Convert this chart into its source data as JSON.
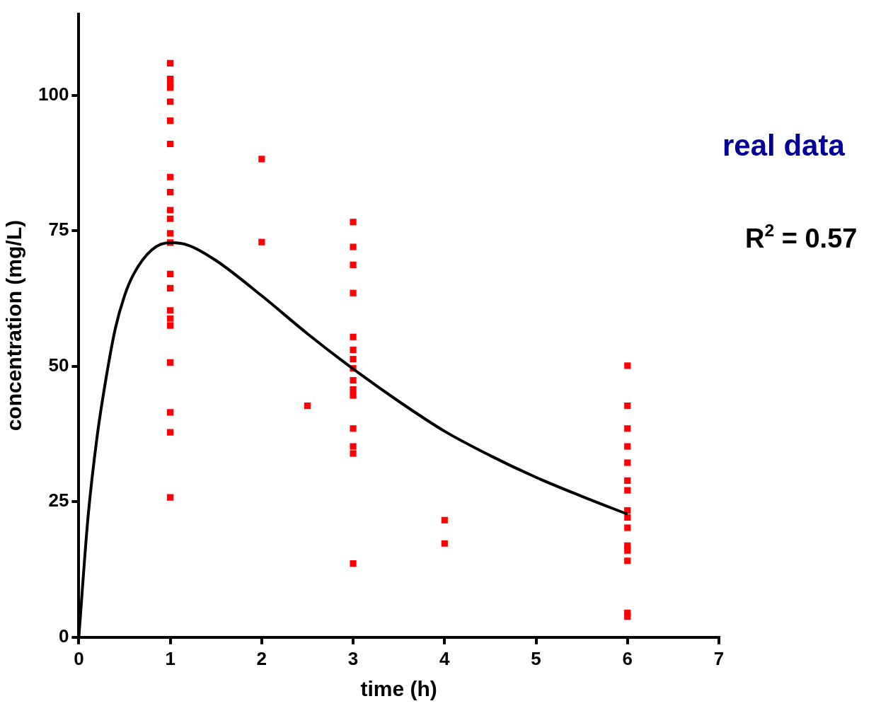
{
  "chart_data": {
    "type": "scatter",
    "xlabel": "time (h)",
    "ylabel": "concentration (mg/L)",
    "xlim": [
      0,
      7
    ],
    "xticks": [
      0,
      1,
      2,
      3,
      4,
      5,
      6,
      7
    ],
    "ylim": [
      0,
      115
    ],
    "yticks": [
      0,
      25,
      50,
      75,
      100
    ],
    "grid": false,
    "legend": false,
    "annotations": [
      "real data",
      "R$^{2}$ = 0.57"
    ],
    "series": [
      {
        "color": "#ff0000",
        "marker": "square",
        "x": [
          1,
          1,
          1,
          1,
          1,
          1,
          1,
          1,
          1,
          1,
          1,
          1,
          1,
          1,
          1,
          1,
          1,
          1,
          1,
          1,
          1,
          1,
          2,
          2,
          2.5,
          3,
          3,
          3,
          3,
          3,
          3,
          3,
          3,
          3,
          3,
          3,
          3,
          3,
          3,
          3,
          4,
          4,
          6,
          6,
          6,
          6,
          6,
          6,
          6,
          6,
          6,
          6,
          6,
          6,
          6,
          6,
          6
        ],
        "values": [
          105.9,
          103.0,
          102.2,
          101.4,
          98.8,
          95.3,
          91.0,
          84.9,
          82.1,
          78.8,
          77.2,
          74.5,
          72.8,
          67.0,
          64.4,
          60.3,
          58.8,
          57.5,
          50.7,
          41.5,
          37.8,
          25.8,
          88.2,
          72.9,
          42.7,
          76.6,
          72.0,
          68.7,
          63.5,
          55.4,
          53.0,
          51.3,
          49.6,
          47.4,
          45.7,
          44.6,
          38.5,
          35.2,
          33.9,
          13.6,
          21.6,
          17.3,
          50.1,
          42.7,
          38.5,
          35.2,
          32.2,
          28.9,
          27.1,
          23.4,
          22.1,
          20.2,
          16.9,
          16.0,
          14.1,
          4.5,
          3.8
        ]
      },
      {
        "type": "line",
        "color": "#000000",
        "marker": "none",
        "line_style": "solid",
        "x": [
          0,
          0.1,
          0.2,
          0.3,
          0.4,
          0.5,
          0.6,
          0.8,
          1,
          1.2,
          1.5,
          2,
          2.5,
          3,
          3.5,
          4,
          4.5,
          5,
          5.5,
          6
        ],
        "values": [
          0,
          22,
          37,
          48,
          57,
          63,
          67,
          71.5,
          72.8,
          72.3,
          69.5,
          63,
          56,
          49.5,
          43.5,
          38,
          33.5,
          29.5,
          26,
          22.7
        ]
      }
    ]
  }
}
